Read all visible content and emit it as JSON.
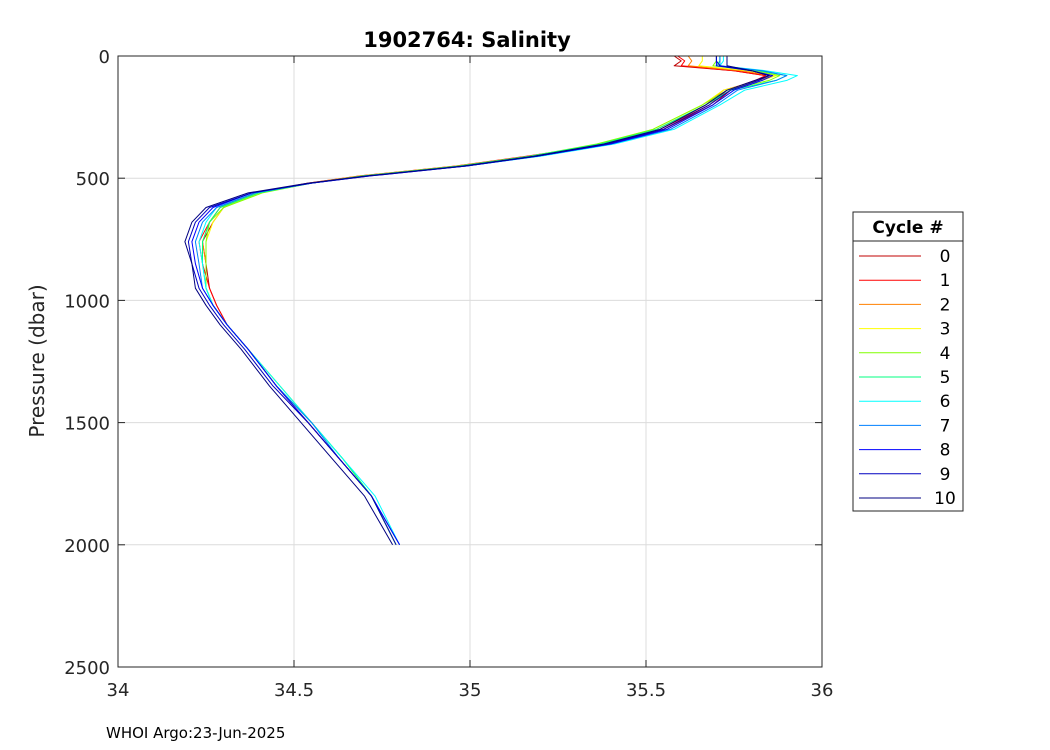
{
  "chart_data": {
    "type": "line",
    "title": "1902764:  Salinity",
    "xlabel": "",
    "ylabel": "Pressure (dbar)",
    "xlim": [
      34,
      36
    ],
    "ylim": [
      0,
      2500
    ],
    "y_reversed": true,
    "grid": true,
    "xticks": [
      34,
      34.5,
      35,
      35.5,
      36
    ],
    "xtick_labels": [
      "34",
      "34.5",
      "35",
      "35.5",
      "36"
    ],
    "yticks": [
      0,
      500,
      1000,
      1500,
      2000,
      2500
    ],
    "ytick_labels": [
      "0",
      "500",
      "1000",
      "1500",
      "2000",
      "2500"
    ],
    "legend": {
      "title": "Cycle #",
      "placement": "right"
    },
    "colors": [
      "#c00000",
      "#ff0000",
      "#ff8000",
      "#ffff00",
      "#80ff00",
      "#00ff80",
      "#00ffff",
      "#0080ff",
      "#0000ff",
      "#0000c0",
      "#000080"
    ],
    "series": [
      {
        "name": "0",
        "x": [
          35.58,
          35.6,
          35.58,
          35.75,
          35.84,
          35.82,
          35.74,
          35.69,
          35.55,
          35.4,
          35.17,
          34.97,
          34.7,
          34.55,
          34.4,
          34.3,
          34.27,
          34.24,
          34.25,
          34.26,
          34.28,
          34.31,
          34.37,
          34.45,
          34.54,
          34.63,
          34.72,
          34.79
        ],
        "y": [
          0,
          20,
          40,
          60,
          80,
          100,
          140,
          200,
          300,
          360,
          410,
          450,
          490,
          520,
          560,
          620,
          680,
          760,
          850,
          950,
          1020,
          1100,
          1200,
          1350,
          1500,
          1650,
          1800,
          2000
        ]
      },
      {
        "name": "1",
        "x": [
          35.59,
          35.61,
          35.6,
          35.75,
          35.84,
          35.81,
          35.73,
          35.68,
          35.54,
          35.39,
          35.16,
          34.96,
          34.69,
          34.54,
          34.39,
          34.29,
          34.26,
          34.23,
          34.24,
          34.26,
          34.28,
          34.31,
          34.37,
          34.45,
          34.54,
          34.63,
          34.72,
          34.8
        ],
        "y": [
          0,
          20,
          40,
          60,
          80,
          100,
          140,
          200,
          300,
          360,
          410,
          450,
          490,
          520,
          560,
          620,
          680,
          760,
          850,
          950,
          1020,
          1100,
          1200,
          1350,
          1500,
          1650,
          1800,
          2000
        ]
      },
      {
        "name": "2",
        "x": [
          35.62,
          35.63,
          35.62,
          35.77,
          35.86,
          35.82,
          35.72,
          35.67,
          35.53,
          35.38,
          35.17,
          34.96,
          34.69,
          34.54,
          34.39,
          34.29,
          34.26,
          34.24,
          34.25,
          34.25,
          34.27,
          34.31,
          34.37,
          34.45,
          34.54,
          34.63,
          34.72,
          34.79
        ],
        "y": [
          0,
          20,
          40,
          60,
          80,
          100,
          140,
          200,
          300,
          360,
          410,
          450,
          490,
          520,
          560,
          620,
          680,
          760,
          850,
          950,
          1020,
          1100,
          1200,
          1350,
          1500,
          1650,
          1800,
          2000
        ]
      },
      {
        "name": "3",
        "x": [
          35.66,
          35.66,
          35.65,
          35.79,
          35.87,
          35.83,
          35.72,
          35.66,
          35.52,
          35.37,
          35.17,
          34.97,
          34.7,
          34.55,
          34.4,
          34.3,
          34.27,
          34.25,
          34.25,
          34.25,
          34.27,
          34.31,
          34.37,
          34.46,
          34.55,
          34.64,
          34.72,
          34.79
        ],
        "y": [
          0,
          20,
          40,
          60,
          80,
          100,
          140,
          200,
          300,
          360,
          410,
          450,
          490,
          520,
          560,
          620,
          680,
          760,
          850,
          950,
          1020,
          1100,
          1200,
          1350,
          1500,
          1650,
          1800,
          2000
        ]
      },
      {
        "name": "4",
        "x": [
          35.7,
          35.7,
          35.69,
          35.81,
          35.88,
          35.85,
          35.73,
          35.66,
          35.52,
          35.36,
          35.17,
          34.97,
          34.7,
          34.55,
          34.41,
          34.3,
          34.26,
          34.25,
          34.25,
          34.25,
          34.27,
          34.31,
          34.37,
          34.46,
          34.55,
          34.64,
          34.72,
          34.79
        ],
        "y": [
          0,
          20,
          40,
          60,
          80,
          100,
          140,
          200,
          300,
          360,
          410,
          450,
          490,
          520,
          560,
          620,
          680,
          760,
          850,
          950,
          1020,
          1100,
          1200,
          1350,
          1500,
          1650,
          1800,
          2000
        ]
      },
      {
        "name": "5",
        "x": [
          35.71,
          35.71,
          35.7,
          35.82,
          35.9,
          35.87,
          35.74,
          35.67,
          35.53,
          35.37,
          35.17,
          34.97,
          34.7,
          34.55,
          34.4,
          34.29,
          34.26,
          34.24,
          34.24,
          34.25,
          34.27,
          34.31,
          34.37,
          34.45,
          34.55,
          34.64,
          34.72,
          34.79
        ],
        "y": [
          0,
          20,
          40,
          60,
          80,
          100,
          140,
          200,
          300,
          360,
          410,
          450,
          490,
          520,
          560,
          620,
          680,
          760,
          850,
          950,
          1020,
          1100,
          1200,
          1350,
          1500,
          1650,
          1800,
          2000
        ]
      },
      {
        "name": "6",
        "x": [
          35.72,
          35.72,
          35.71,
          35.84,
          35.93,
          35.9,
          35.78,
          35.71,
          35.58,
          35.41,
          35.2,
          34.99,
          34.71,
          34.55,
          34.39,
          34.28,
          34.25,
          34.23,
          34.24,
          34.25,
          34.27,
          34.31,
          34.37,
          34.46,
          34.55,
          34.64,
          34.73,
          34.8
        ],
        "y": [
          0,
          20,
          40,
          60,
          80,
          100,
          140,
          200,
          300,
          360,
          410,
          450,
          490,
          520,
          560,
          620,
          680,
          760,
          850,
          950,
          1020,
          1100,
          1200,
          1350,
          1500,
          1650,
          1800,
          2000
        ]
      },
      {
        "name": "7",
        "x": [
          35.71,
          35.71,
          35.71,
          35.83,
          35.9,
          35.87,
          35.76,
          35.7,
          35.57,
          35.4,
          35.19,
          34.99,
          34.71,
          34.55,
          34.39,
          34.28,
          34.24,
          34.22,
          34.23,
          34.24,
          34.27,
          34.31,
          34.37,
          34.45,
          34.55,
          34.63,
          34.72,
          34.8
        ],
        "y": [
          0,
          20,
          40,
          60,
          80,
          100,
          140,
          200,
          300,
          360,
          410,
          450,
          490,
          520,
          560,
          620,
          680,
          760,
          850,
          950,
          1020,
          1100,
          1200,
          1350,
          1500,
          1650,
          1800,
          2000
        ]
      },
      {
        "name": "8",
        "x": [
          35.7,
          35.7,
          35.7,
          35.8,
          35.86,
          35.83,
          35.75,
          35.69,
          35.56,
          35.4,
          35.19,
          34.99,
          34.72,
          34.55,
          34.38,
          34.27,
          34.23,
          34.21,
          34.22,
          34.24,
          34.27,
          34.31,
          34.37,
          34.45,
          34.54,
          34.63,
          34.72,
          34.8
        ],
        "y": [
          0,
          20,
          40,
          60,
          80,
          100,
          140,
          200,
          300,
          360,
          410,
          450,
          490,
          520,
          560,
          620,
          680,
          760,
          850,
          950,
          1020,
          1100,
          1200,
          1350,
          1500,
          1650,
          1800,
          2000
        ]
      },
      {
        "name": "9",
        "x": [
          35.7,
          35.7,
          35.71,
          35.8,
          35.85,
          35.82,
          35.74,
          35.68,
          35.55,
          35.39,
          35.19,
          34.99,
          34.72,
          34.55,
          34.38,
          34.26,
          34.22,
          34.2,
          34.21,
          34.23,
          34.26,
          34.3,
          34.36,
          34.44,
          34.54,
          34.63,
          34.72,
          34.79
        ],
        "y": [
          0,
          20,
          40,
          60,
          80,
          100,
          140,
          200,
          300,
          360,
          410,
          450,
          490,
          520,
          560,
          620,
          680,
          760,
          850,
          950,
          1020,
          1100,
          1200,
          1350,
          1500,
          1650,
          1800,
          2000
        ]
      },
      {
        "name": "10",
        "x": [
          35.73,
          35.73,
          35.73,
          35.8,
          35.85,
          35.81,
          35.73,
          35.67,
          35.54,
          35.38,
          35.18,
          34.98,
          34.71,
          34.54,
          34.37,
          34.25,
          34.21,
          34.19,
          34.21,
          34.22,
          34.25,
          34.29,
          34.35,
          34.43,
          34.52,
          34.61,
          34.7,
          34.78
        ],
        "y": [
          0,
          20,
          40,
          60,
          80,
          100,
          140,
          200,
          300,
          360,
          410,
          450,
          490,
          520,
          560,
          620,
          680,
          760,
          850,
          950,
          1020,
          1100,
          1200,
          1350,
          1500,
          1650,
          1800,
          2000
        ]
      }
    ]
  },
  "footer": {
    "text": "WHOI Argo:23-Jun-2025"
  }
}
